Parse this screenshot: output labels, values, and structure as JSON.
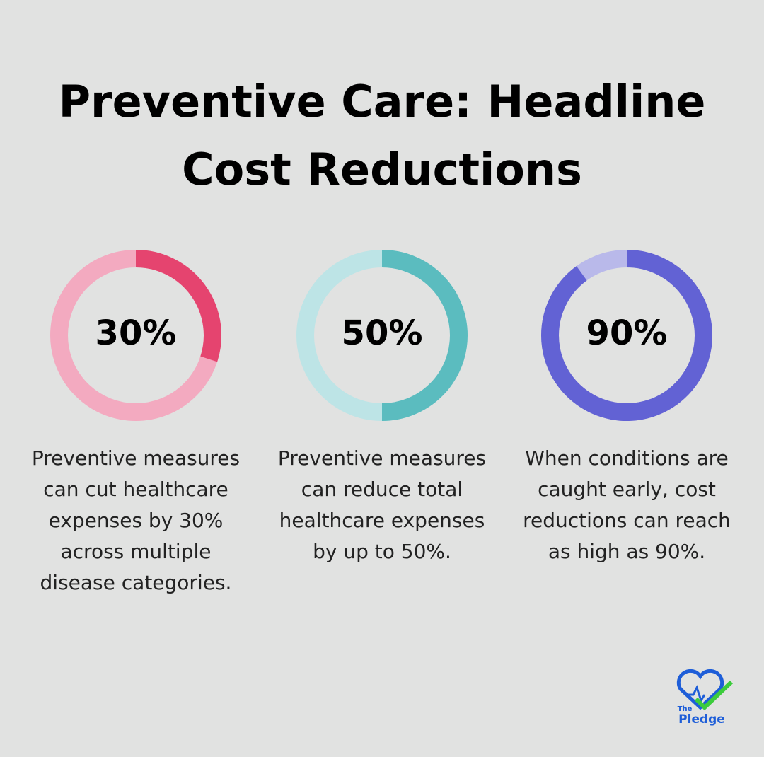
{
  "title": "Preventive Care: Headline Cost Reductions",
  "chart_data": [
    {
      "type": "donut",
      "values": [
        30
      ],
      "value_labels": [
        "30%"
      ],
      "color": "#e5446f",
      "track_color": "#f3aac0",
      "caption": "Preventive measures can cut healthcare expenses by 30% across multiple disease categories."
    },
    {
      "type": "donut",
      "values": [
        50
      ],
      "value_labels": [
        "50%"
      ],
      "color": "#5bbcbf",
      "track_color": "#bde4e6",
      "caption": "Preventive measures can reduce total healthcare expenses by up to 50%."
    },
    {
      "type": "donut",
      "values": [
        90
      ],
      "value_labels": [
        "90%"
      ],
      "color": "#6262d4",
      "track_color": "#b9b9ea",
      "caption": "When conditions are caught early, cost reductions can reach as high as 90%."
    }
  ],
  "logo": {
    "small": "The",
    "big": "Pledge"
  }
}
